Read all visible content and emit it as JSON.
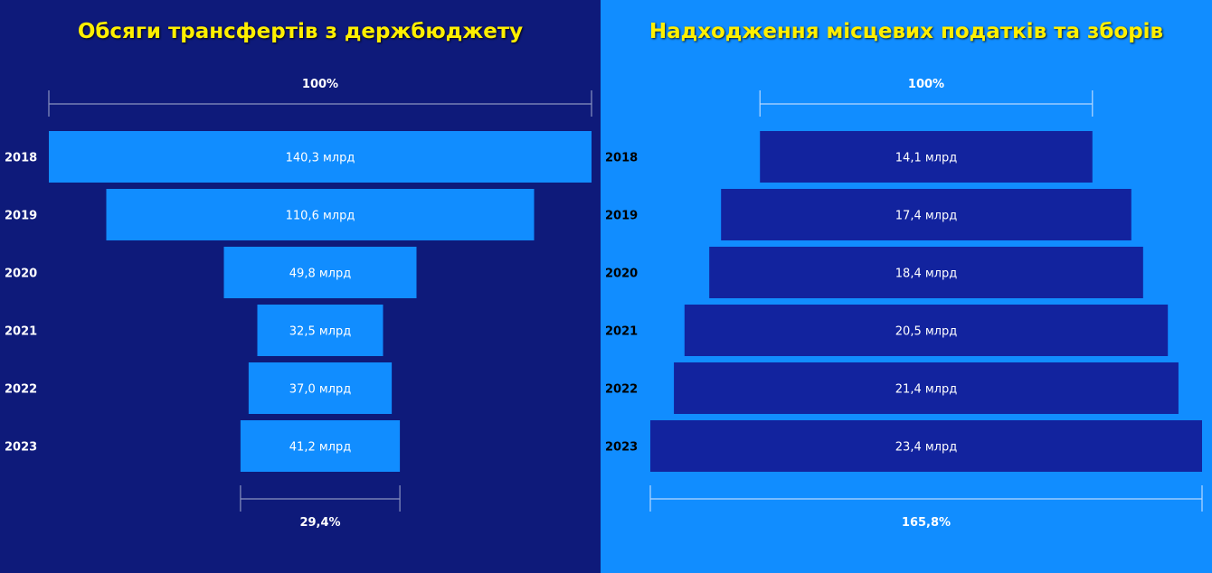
{
  "colors": {
    "left_bg": "#0E1A7A",
    "left_bar": "#118DFF",
    "right_bg": "#118DFF",
    "right_bar": "#12239E",
    "title": "#FFEF00"
  },
  "chart_data": [
    {
      "type": "bar",
      "orientation": "horizontal-centered-funnel",
      "title": "Обсяги трансфертів з держбюджету",
      "categories": [
        "2018",
        "2019",
        "2020",
        "2021",
        "2022",
        "2023"
      ],
      "values": [
        140.3,
        110.6,
        49.8,
        32.5,
        37.0,
        41.2
      ],
      "value_labels": [
        "140,3 млрд",
        "110,6 млрд",
        "49,8 млрд",
        "32,5 млрд",
        "37,0 млрд",
        "41,2 млрд"
      ],
      "top_percent_label": "100%",
      "bottom_percent_label": "29,4%"
    },
    {
      "type": "bar",
      "orientation": "horizontal-centered-funnel",
      "title": "Надходження місцевих податків та зборів",
      "categories": [
        "2018",
        "2019",
        "2020",
        "2021",
        "2022",
        "2023"
      ],
      "values": [
        14.1,
        17.4,
        18.4,
        20.5,
        21.4,
        23.4
      ],
      "value_labels": [
        "14,1 млрд",
        "17,4 млрд",
        "18,4 млрд",
        "20,5 млрд",
        "21,4 млрд",
        "23,4 млрд"
      ],
      "top_percent_label": "100%",
      "bottom_percent_label": "165,8%"
    }
  ]
}
